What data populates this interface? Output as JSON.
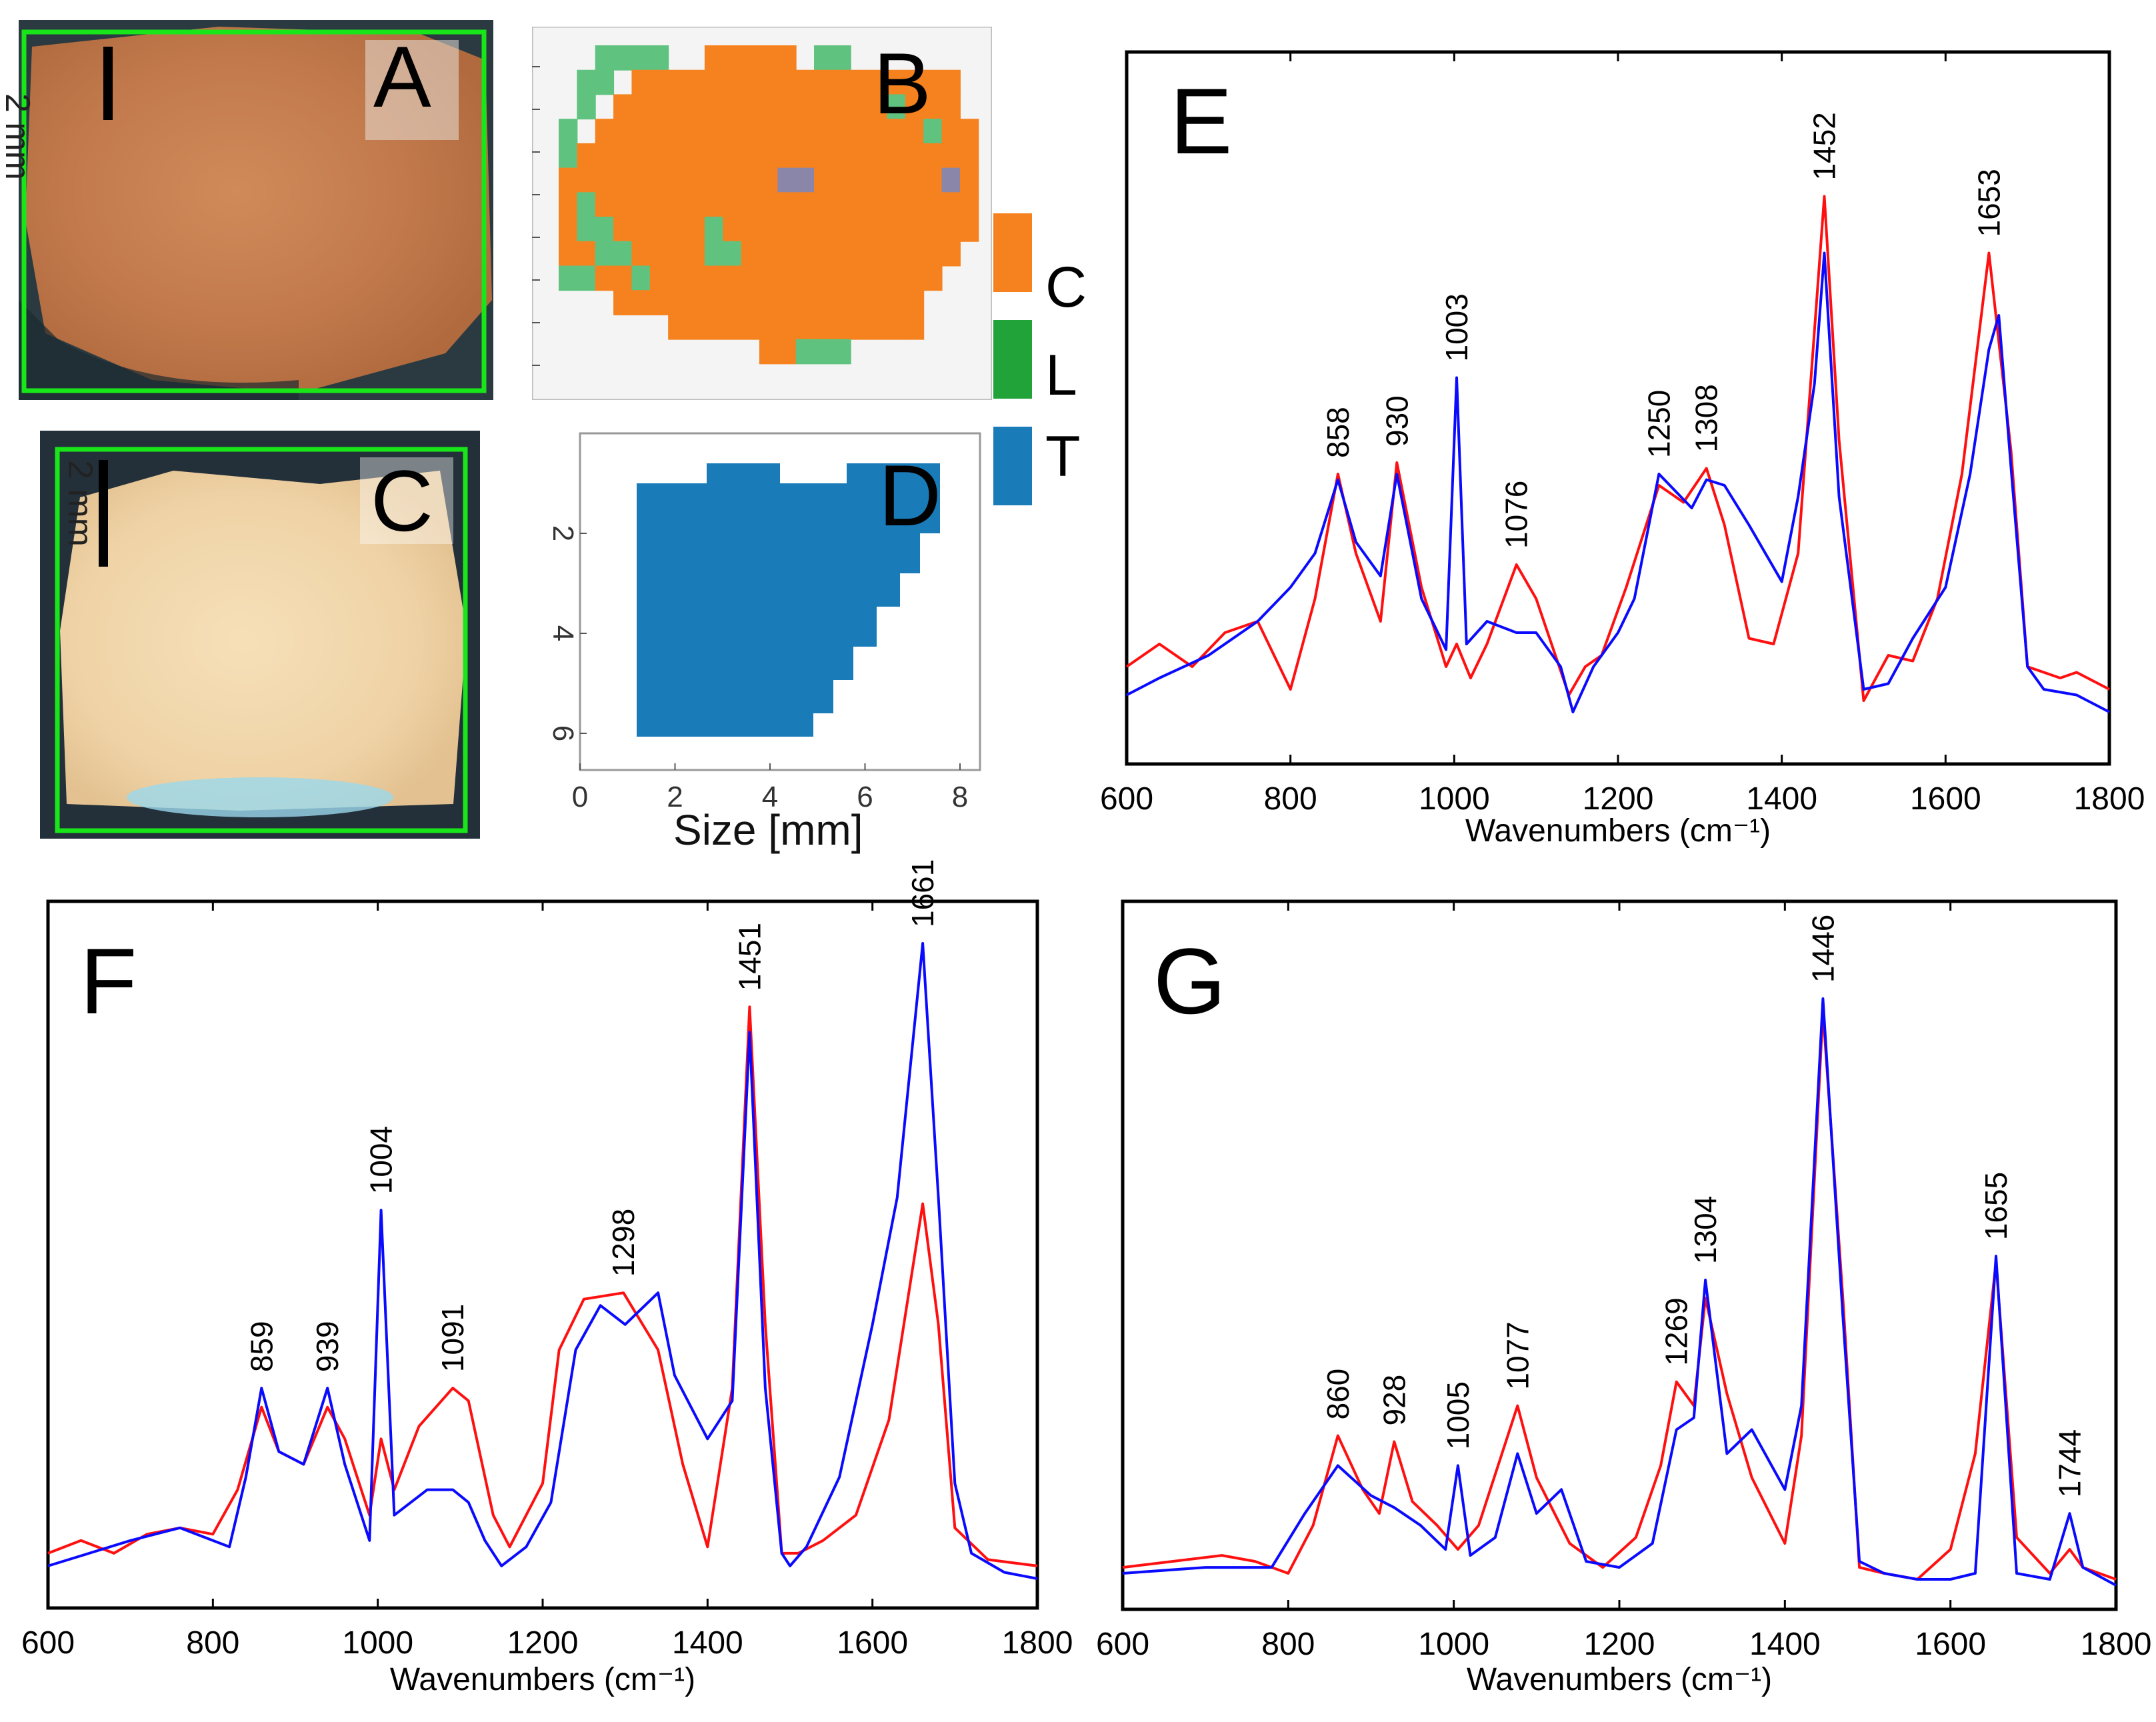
{
  "panels": {
    "A": {
      "letter": "A",
      "scale": "2 mm"
    },
    "B": {
      "letter": "B"
    },
    "C": {
      "letter": "C",
      "scale": "2 mm"
    },
    "D": {
      "letter": "D"
    }
  },
  "legend": {
    "items": [
      {
        "label": "C",
        "color": "#f5821f"
      },
      {
        "label": "L",
        "color": "#22a33a"
      },
      {
        "label": "T",
        "color": "#1a7bb9"
      }
    ]
  },
  "map_axes": {
    "xlabel": "Size [mm]",
    "xticks": [
      "0",
      "2",
      "4",
      "6",
      "8"
    ],
    "yticks": [
      "2",
      "4",
      "6"
    ]
  },
  "colors": {
    "series_a": "#0a0aff",
    "series_b": "#ff1010",
    "photo_border": "#19e619"
  },
  "chart_data": [
    {
      "type": "line",
      "panel": "E",
      "xlabel": "Wavenumbers (cm⁻¹)",
      "xlim": [
        600,
        1800
      ],
      "xticks": [
        600,
        800,
        1000,
        1200,
        1400,
        1600,
        1800
      ],
      "annotations": [
        "858",
        "930",
        "1003",
        "1076",
        "1250",
        "1308",
        "1452",
        "1653"
      ],
      "series": [
        {
          "color": "blue",
          "x": [
            600,
            640,
            700,
            760,
            800,
            830,
            858,
            880,
            910,
            930,
            960,
            990,
            1003,
            1015,
            1040,
            1076,
            1100,
            1130,
            1145,
            1170,
            1200,
            1220,
            1250,
            1270,
            1290,
            1308,
            1330,
            1360,
            1400,
            1420,
            1440,
            1452,
            1470,
            1500,
            1530,
            1560,
            1600,
            1630,
            1653,
            1665,
            1680,
            1700,
            1720,
            1760,
            1800
          ],
          "y": [
            0.05,
            0.08,
            0.12,
            0.18,
            0.24,
            0.3,
            0.43,
            0.32,
            0.26,
            0.44,
            0.22,
            0.13,
            0.61,
            0.14,
            0.18,
            0.16,
            0.16,
            0.1,
            0.02,
            0.1,
            0.16,
            0.22,
            0.44,
            0.41,
            0.38,
            0.43,
            0.42,
            0.35,
            0.25,
            0.4,
            0.6,
            0.83,
            0.4,
            0.06,
            0.07,
            0.15,
            0.24,
            0.44,
            0.66,
            0.72,
            0.45,
            0.1,
            0.06,
            0.05,
            0.02
          ]
        },
        {
          "color": "red",
          "x": [
            600,
            640,
            680,
            720,
            760,
            800,
            830,
            858,
            880,
            910,
            930,
            960,
            990,
            1003,
            1020,
            1040,
            1076,
            1100,
            1140,
            1160,
            1180,
            1210,
            1250,
            1280,
            1308,
            1330,
            1360,
            1390,
            1420,
            1452,
            1470,
            1500,
            1530,
            1560,
            1590,
            1620,
            1653,
            1680,
            1700,
            1740,
            1760,
            1800
          ],
          "y": [
            0.1,
            0.14,
            0.1,
            0.16,
            0.18,
            0.06,
            0.22,
            0.44,
            0.3,
            0.18,
            0.46,
            0.24,
            0.1,
            0.14,
            0.08,
            0.14,
            0.28,
            0.22,
            0.05,
            0.1,
            0.12,
            0.24,
            0.42,
            0.39,
            0.45,
            0.35,
            0.15,
            0.14,
            0.3,
            0.93,
            0.5,
            0.04,
            0.12,
            0.11,
            0.22,
            0.44,
            0.83,
            0.48,
            0.1,
            0.08,
            0.09,
            0.06
          ]
        }
      ]
    },
    {
      "type": "line",
      "panel": "F",
      "xlabel": "Wavenumbers (cm⁻¹)",
      "xlim": [
        600,
        1800
      ],
      "xticks": [
        600,
        800,
        1000,
        1200,
        1400,
        1600,
        1800
      ],
      "annotations": [
        "859",
        "939",
        "1004",
        "1091",
        "1298",
        "1451",
        "1661"
      ],
      "series": [
        {
          "color": "blue",
          "x": [
            600,
            650,
            700,
            760,
            800,
            820,
            840,
            859,
            880,
            910,
            939,
            960,
            990,
            1004,
            1020,
            1060,
            1091,
            1110,
            1130,
            1150,
            1180,
            1210,
            1240,
            1270,
            1300,
            1340,
            1360,
            1400,
            1430,
            1451,
            1470,
            1490,
            1500,
            1520,
            1560,
            1600,
            1630,
            1661,
            1680,
            1700,
            1720,
            1760,
            1800
          ],
          "y": [
            0.02,
            0.04,
            0.06,
            0.08,
            0.06,
            0.05,
            0.16,
            0.3,
            0.2,
            0.18,
            0.3,
            0.18,
            0.06,
            0.58,
            0.1,
            0.14,
            0.14,
            0.12,
            0.06,
            0.02,
            0.05,
            0.12,
            0.36,
            0.43,
            0.4,
            0.45,
            0.32,
            0.22,
            0.28,
            0.86,
            0.3,
            0.04,
            0.02,
            0.05,
            0.16,
            0.4,
            0.6,
            1.0,
            0.6,
            0.15,
            0.04,
            0.01,
            0.0
          ]
        },
        {
          "color": "red",
          "x": [
            600,
            640,
            680,
            720,
            760,
            800,
            830,
            859,
            880,
            910,
            939,
            960,
            990,
            1004,
            1020,
            1050,
            1091,
            1110,
            1140,
            1160,
            1200,
            1220,
            1250,
            1298,
            1340,
            1370,
            1400,
            1430,
            1451,
            1470,
            1490,
            1510,
            1540,
            1580,
            1620,
            1661,
            1680,
            1700,
            1740,
            1800
          ],
          "y": [
            0.04,
            0.06,
            0.04,
            0.07,
            0.08,
            0.07,
            0.14,
            0.27,
            0.2,
            0.18,
            0.27,
            0.22,
            0.1,
            0.22,
            0.14,
            0.24,
            0.3,
            0.28,
            0.1,
            0.05,
            0.15,
            0.36,
            0.44,
            0.45,
            0.36,
            0.18,
            0.05,
            0.3,
            0.9,
            0.4,
            0.04,
            0.04,
            0.06,
            0.1,
            0.25,
            0.59,
            0.4,
            0.08,
            0.03,
            0.02
          ]
        }
      ]
    },
    {
      "type": "line",
      "panel": "G",
      "xlabel": "Wavenumbers (cm⁻¹)",
      "xlim": [
        600,
        1800
      ],
      "xticks": [
        600,
        800,
        1000,
        1200,
        1400,
        1600,
        1800
      ],
      "annotations": [
        "860",
        "928",
        "1005",
        "1077",
        "1269",
        "1304",
        "1446",
        "1655",
        "1744"
      ],
      "series": [
        {
          "color": "blue",
          "x": [
            600,
            700,
            780,
            820,
            860,
            900,
            928,
            960,
            990,
            1005,
            1020,
            1050,
            1077,
            1100,
            1130,
            1160,
            1200,
            1240,
            1269,
            1290,
            1304,
            1330,
            1360,
            1400,
            1420,
            1446,
            1470,
            1490,
            1520,
            1560,
            1600,
            1630,
            1655,
            1680,
            1720,
            1744,
            1760,
            1800
          ],
          "y": [
            0.02,
            0.03,
            0.03,
            0.12,
            0.2,
            0.15,
            0.13,
            0.1,
            0.06,
            0.2,
            0.05,
            0.08,
            0.22,
            0.12,
            0.16,
            0.04,
            0.03,
            0.07,
            0.26,
            0.28,
            0.51,
            0.22,
            0.26,
            0.16,
            0.3,
            0.98,
            0.45,
            0.04,
            0.02,
            0.01,
            0.01,
            0.02,
            0.55,
            0.02,
            0.01,
            0.12,
            0.03,
            0.0
          ]
        },
        {
          "color": "red",
          "x": [
            600,
            660,
            720,
            760,
            800,
            830,
            860,
            890,
            910,
            928,
            950,
            980,
            1005,
            1030,
            1077,
            1100,
            1140,
            1180,
            1220,
            1250,
            1269,
            1290,
            1304,
            1330,
            1360,
            1400,
            1420,
            1446,
            1470,
            1490,
            1520,
            1560,
            1600,
            1630,
            1655,
            1680,
            1720,
            1744,
            1760,
            1800
          ],
          "y": [
            0.03,
            0.04,
            0.05,
            0.04,
            0.02,
            0.1,
            0.25,
            0.16,
            0.12,
            0.24,
            0.14,
            0.1,
            0.06,
            0.1,
            0.3,
            0.18,
            0.07,
            0.03,
            0.08,
            0.2,
            0.34,
            0.3,
            0.48,
            0.32,
            0.18,
            0.07,
            0.25,
            0.96,
            0.48,
            0.03,
            0.02,
            0.01,
            0.06,
            0.22,
            0.54,
            0.08,
            0.02,
            0.06,
            0.03,
            0.01
          ]
        }
      ]
    }
  ]
}
